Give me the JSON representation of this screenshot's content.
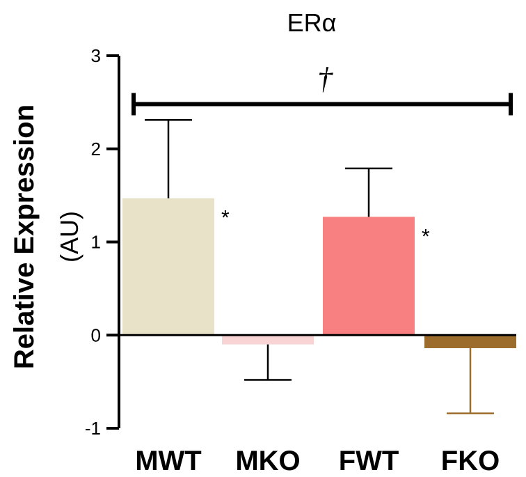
{
  "chart_data": {
    "type": "bar",
    "title": "ERα",
    "ylabel_line1": "Relative Expression",
    "ylabel_line2": "(AU)",
    "xlabel": "",
    "ylim": [
      -1,
      3
    ],
    "yticks": [
      "-1",
      "0",
      "1",
      "2",
      "3"
    ],
    "ytick_values": [
      -1,
      0,
      1,
      2,
      3
    ],
    "categories": [
      "MWT",
      "MKO",
      "FWT",
      "FKO"
    ],
    "values": [
      1.47,
      -0.1,
      1.27,
      -0.14
    ],
    "errors": [
      0.84,
      0.38,
      0.52,
      0.7
    ],
    "colors": [
      "#e8e2c8",
      "#f8d4d4",
      "#f98080",
      "#9c6c2c"
    ],
    "error_colors": [
      "#000000",
      "#000000",
      "#000000",
      "#9c6c2c"
    ],
    "bar_annotations": [
      "*",
      "",
      "*",
      ""
    ],
    "comparison": {
      "symbol": "†",
      "from": "MWT",
      "to": "FKO",
      "y": 2.48
    }
  }
}
